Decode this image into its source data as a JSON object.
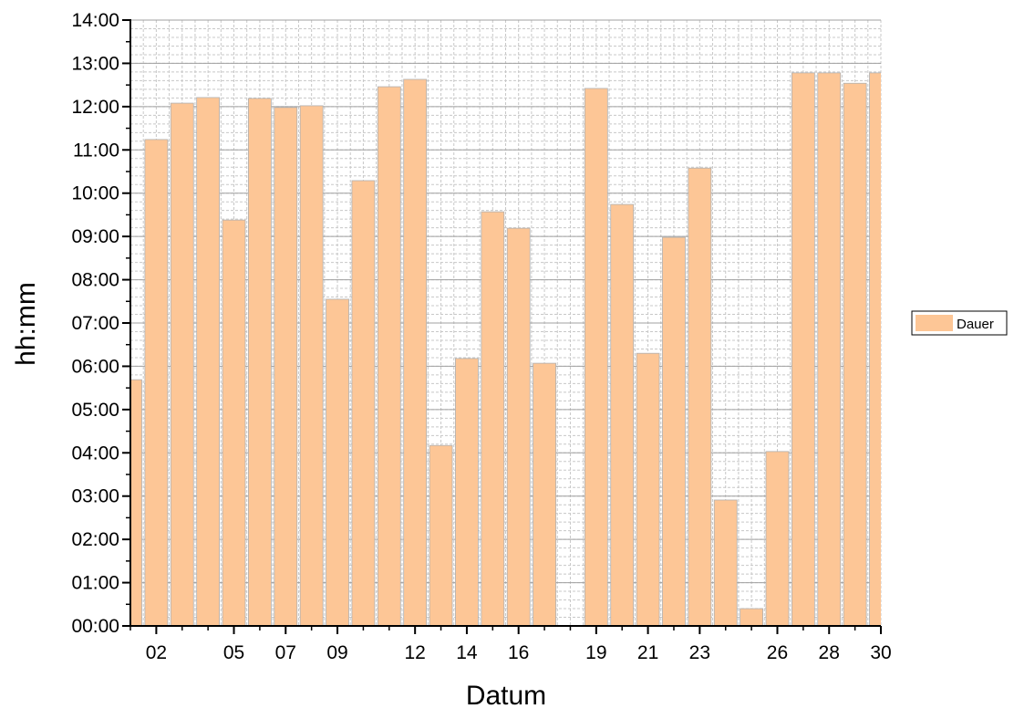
{
  "chart_data": {
    "type": "bar",
    "x_label": "Datum",
    "y_label": "hh:mm",
    "x": [
      1,
      2,
      3,
      4,
      5,
      6,
      7,
      8,
      9,
      10,
      11,
      12,
      13,
      14,
      15,
      16,
      17,
      18,
      19,
      20,
      21,
      22,
      23,
      24,
      25,
      26,
      27,
      28,
      29,
      30
    ],
    "series": [
      {
        "name": "Dauer",
        "color": "#fdc696",
        "values": [
          5.69,
          11.24,
          12.08,
          12.21,
          9.38,
          12.19,
          11.98,
          12.02,
          7.55,
          10.29,
          12.46,
          12.63,
          4.17,
          6.18,
          9.57,
          9.19,
          6.07,
          null,
          12.42,
          9.74,
          6.3,
          8.98,
          10.58,
          2.91,
          0.4,
          4.03,
          12.78,
          12.78,
          12.54,
          12.78
        ]
      }
    ],
    "xlim": [
      1,
      30
    ],
    "xticks": [
      {
        "value": 2,
        "label": "02"
      },
      {
        "value": 5,
        "label": "05"
      },
      {
        "value": 7,
        "label": "07"
      },
      {
        "value": 9,
        "label": "09"
      },
      {
        "value": 12,
        "label": "12"
      },
      {
        "value": 14,
        "label": "14"
      },
      {
        "value": 16,
        "label": "16"
      },
      {
        "value": 19,
        "label": "19"
      },
      {
        "value": 21,
        "label": "21"
      },
      {
        "value": 23,
        "label": "23"
      },
      {
        "value": 26,
        "label": "26"
      },
      {
        "value": 28,
        "label": "28"
      },
      {
        "value": 30,
        "label": "30"
      }
    ],
    "ylim": [
      0,
      14
    ],
    "yticks": [
      {
        "value": 0,
        "label": "00:00"
      },
      {
        "value": 1,
        "label": "01:00"
      },
      {
        "value": 2,
        "label": "02:00"
      },
      {
        "value": 3,
        "label": "03:00"
      },
      {
        "value": 4,
        "label": "04:00"
      },
      {
        "value": 5,
        "label": "05:00"
      },
      {
        "value": 6,
        "label": "06:00"
      },
      {
        "value": 7,
        "label": "07:00"
      },
      {
        "value": 8,
        "label": "08:00"
      },
      {
        "value": 9,
        "label": "09:00"
      },
      {
        "value": 10,
        "label": "10:00"
      },
      {
        "value": 11,
        "label": "11:00"
      },
      {
        "value": 12,
        "label": "12:00"
      },
      {
        "value": 13,
        "label": "13:00"
      },
      {
        "value": 14,
        "label": "14:00"
      }
    ],
    "grid": true,
    "legend": "right"
  }
}
